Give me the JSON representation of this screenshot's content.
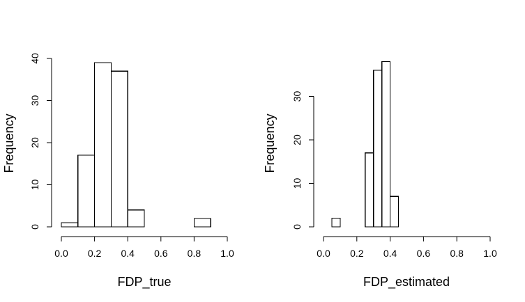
{
  "chart_data": [
    {
      "type": "bar",
      "histogram": true,
      "title": "",
      "xlabel": "FDP_true",
      "ylabel": "Frequency",
      "xlim": [
        0,
        1
      ],
      "ylim": [
        0,
        40
      ],
      "xticks": [
        "0.0",
        "0.2",
        "0.4",
        "0.6",
        "0.8",
        "1.0"
      ],
      "yticks": [
        "0",
        "10",
        "20",
        "30",
        "40"
      ],
      "bins": [
        {
          "x0": 0.0,
          "x1": 0.1,
          "count": 1
        },
        {
          "x0": 0.1,
          "x1": 0.2,
          "count": 17
        },
        {
          "x0": 0.2,
          "x1": 0.3,
          "count": 39
        },
        {
          "x0": 0.3,
          "x1": 0.4,
          "count": 37
        },
        {
          "x0": 0.4,
          "x1": 0.5,
          "count": 4
        },
        {
          "x0": 0.5,
          "x1": 0.6,
          "count": 0
        },
        {
          "x0": 0.6,
          "x1": 0.7,
          "count": 0
        },
        {
          "x0": 0.7,
          "x1": 0.8,
          "count": 0
        },
        {
          "x0": 0.8,
          "x1": 0.9,
          "count": 2
        }
      ],
      "grid": false
    },
    {
      "type": "bar",
      "histogram": true,
      "title": "",
      "xlabel": "FDP_estimated",
      "ylabel": "Frequency",
      "xlim": [
        0,
        1
      ],
      "ylim": [
        0,
        38
      ],
      "xticks": [
        "0.0",
        "0.2",
        "0.4",
        "0.6",
        "0.8",
        "1.0"
      ],
      "yticks": [
        "0",
        "10",
        "20",
        "30"
      ],
      "bins": [
        {
          "x0": 0.05,
          "x1": 0.1,
          "count": 2
        },
        {
          "x0": 0.1,
          "x1": 0.15,
          "count": 0
        },
        {
          "x0": 0.15,
          "x1": 0.2,
          "count": 0
        },
        {
          "x0": 0.2,
          "x1": 0.25,
          "count": 0
        },
        {
          "x0": 0.25,
          "x1": 0.3,
          "count": 17
        },
        {
          "x0": 0.3,
          "x1": 0.35,
          "count": 36
        },
        {
          "x0": 0.35,
          "x1": 0.4,
          "count": 38
        },
        {
          "x0": 0.4,
          "x1": 0.45,
          "count": 7
        }
      ],
      "grid": false
    }
  ]
}
